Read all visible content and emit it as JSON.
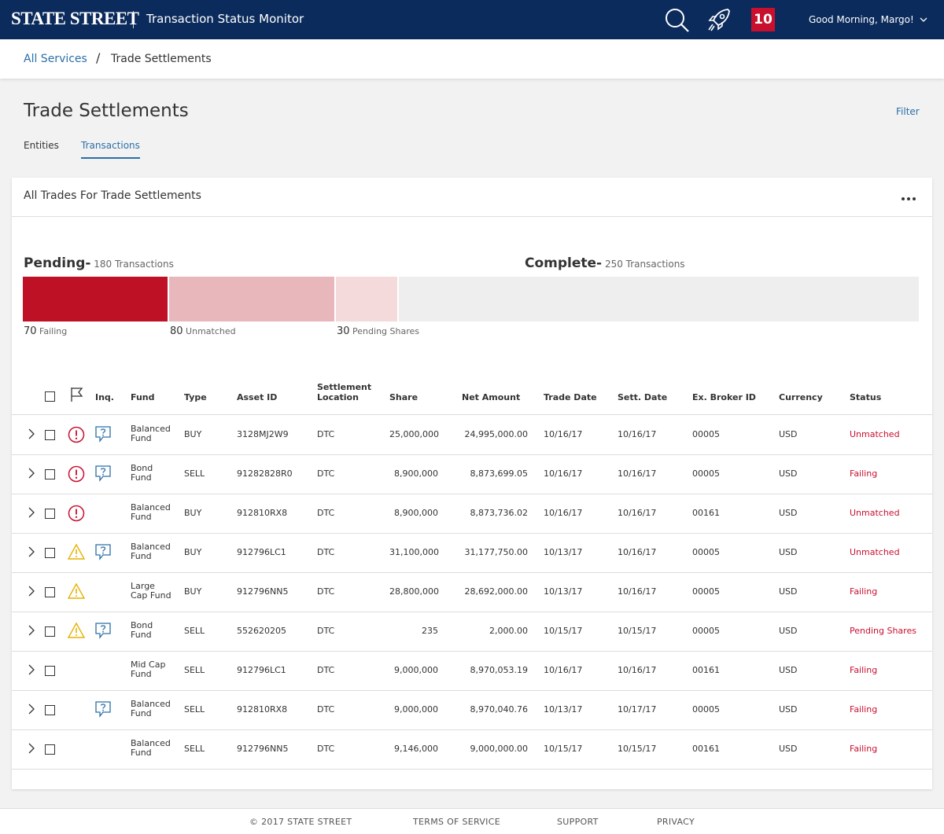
{
  "header": {
    "logo": "STATE STREET",
    "app_title": "Transaction Status Monitor",
    "notification_count": "10",
    "greeting": "Good Morning, Margo!"
  },
  "breadcrumb": {
    "parent": "All Services",
    "separator": "/",
    "current": "Trade Settlements"
  },
  "page": {
    "title": "Trade Settlements",
    "filter_label": "Filter",
    "tabs": [
      {
        "label": "Entities",
        "active": false
      },
      {
        "label": "Transactions",
        "active": true
      }
    ]
  },
  "card": {
    "title": "All Trades For Trade Settlements",
    "pending": {
      "label": "Pending-",
      "count_text": "180 Transactions"
    },
    "complete": {
      "label": "Complete-",
      "count_text": "250 Transactions"
    },
    "segments": [
      {
        "count": "70",
        "label": "Failing",
        "value": 70,
        "color": "#be1125"
      },
      {
        "count": "80",
        "label": "Unmatched",
        "value": 80,
        "color": "#e8b7bc"
      },
      {
        "count": "30",
        "label": "Pending Shares",
        "value": 30,
        "color": "#f5dadc"
      },
      {
        "count": "",
        "label": "",
        "value": 250,
        "color": "#eeeeee"
      }
    ]
  },
  "table": {
    "headers": {
      "inq": "Inq.",
      "fund": "Fund",
      "type": "Type",
      "asset_id": "Asset ID",
      "settlement_location_1": "Settlement",
      "settlement_location_2": "Location",
      "share": "Share",
      "net_amount": "Net Amount",
      "trade_date": "Trade Date",
      "sett_date": "Sett. Date",
      "broker": "Ex. Broker ID",
      "currency": "Currency",
      "status": "Status"
    },
    "rows": [
      {
        "alert": "error",
        "inquiry": true,
        "fund1": "Balanced",
        "fund2": "Fund",
        "type": "BUY",
        "asset": "3128MJ2W9",
        "loc": "DTC",
        "share": "25,000,000",
        "net": "24,995,000.00",
        "trade": "10/16/17",
        "sett": "10/16/17",
        "broker": "00005",
        "currency": "USD",
        "status": "Unmatched"
      },
      {
        "alert": "error",
        "inquiry": true,
        "fund1": "Bond",
        "fund2": "Fund",
        "type": "SELL",
        "asset": "91282828R0",
        "loc": "DTC",
        "share": "8,900,000",
        "net": "8,873,699.05",
        "trade": "10/16/17",
        "sett": "10/16/17",
        "broker": "00005",
        "currency": "USD",
        "status": "Failing"
      },
      {
        "alert": "error",
        "inquiry": false,
        "fund1": "Balanced",
        "fund2": "Fund",
        "type": "BUY",
        "asset": "912810RX8",
        "loc": "DTC",
        "share": "8,900,000",
        "net": "8,873,736.02",
        "trade": "10/16/17",
        "sett": "10/16/17",
        "broker": "00161",
        "currency": "USD",
        "status": "Unmatched"
      },
      {
        "alert": "warning",
        "inquiry": true,
        "fund1": "Balanced",
        "fund2": "Fund",
        "type": "BUY",
        "asset": "912796LC1",
        "loc": "DTC",
        "share": "31,100,000",
        "net": "31,177,750.00",
        "trade": "10/13/17",
        "sett": "10/16/17",
        "broker": "00005",
        "currency": "USD",
        "status": "Unmatched"
      },
      {
        "alert": "warning",
        "inquiry": false,
        "fund1": "Large",
        "fund2": "Cap Fund",
        "type": "BUY",
        "asset": "912796NN5",
        "loc": "DTC",
        "share": "28,800,000",
        "net": "28,692,000.00",
        "trade": "10/13/17",
        "sett": "10/16/17",
        "broker": "00005",
        "currency": "USD",
        "status": "Failing"
      },
      {
        "alert": "warning",
        "inquiry": true,
        "fund1": "Bond",
        "fund2": "Fund",
        "type": "SELL",
        "asset": "552620205",
        "loc": "DTC",
        "share": "235",
        "net": "2,000.00",
        "trade": "10/15/17",
        "sett": "10/15/17",
        "broker": "00005",
        "currency": "USD",
        "status": "Pending Shares"
      },
      {
        "alert": "none",
        "inquiry": false,
        "fund1": "Mid Cap",
        "fund2": "Fund",
        "type": "SELL",
        "asset": "912796LC1",
        "loc": "DTC",
        "share": "9,000,000",
        "net": "8,970,053.19",
        "trade": "10/16/17",
        "sett": "10/16/17",
        "broker": "00161",
        "currency": "USD",
        "status": "Failing"
      },
      {
        "alert": "none",
        "inquiry": true,
        "fund1": "Balanced",
        "fund2": "Fund",
        "type": "SELL",
        "asset": "912810RX8",
        "loc": "DTC",
        "share": "9,000,000",
        "net": "8,970,040.76",
        "trade": "10/13/17",
        "sett": "10/17/17",
        "broker": "00005",
        "currency": "USD",
        "status": "Failing"
      },
      {
        "alert": "none",
        "inquiry": false,
        "fund1": "Balanced",
        "fund2": "Fund",
        "type": "SELL",
        "asset": "912796NN5",
        "loc": "DTC",
        "share": "9,146,000",
        "net": "9,000,000.00",
        "trade": "10/15/17",
        "sett": "10/15/17",
        "broker": "00161",
        "currency": "USD",
        "status": "Failing"
      }
    ]
  },
  "footer": {
    "copyright": "© 2017 STATE STREET",
    "links": [
      "TERMS OF SERVICE",
      "SUPPORT",
      "PRIVACY"
    ]
  },
  "colors": {
    "navy": "#0b2b5c",
    "accent_red": "#c8102e",
    "link_blue": "#2a6fa8",
    "warning": "#e8b100"
  }
}
